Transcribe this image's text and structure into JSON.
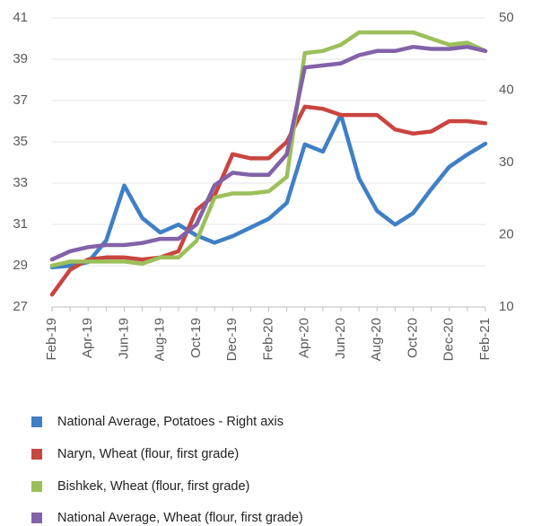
{
  "chart_data": {
    "type": "line",
    "categories": [
      "Feb-19",
      null,
      "Apr-19",
      null,
      "Jun-19",
      null,
      "Aug-19",
      null,
      "Oct-19",
      null,
      "Dec-19",
      null,
      "Feb-20",
      null,
      "Apr-20",
      null,
      "Jun-20",
      null,
      "Aug-20",
      null,
      "Oct-20",
      null,
      "Dec-20",
      null,
      "Feb-21"
    ],
    "series": [
      {
        "name": "National Average, Potatoes - Right axis",
        "color": "#3f7fc6",
        "axis": "y2",
        "values": [
          15.5,
          15.7,
          16.2,
          19.2,
          26.8,
          22.3,
          20.3,
          21.4,
          19.9,
          18.9,
          19.8,
          21,
          22.2,
          24.4,
          32.5,
          31.5,
          36.6,
          27.8,
          23.3,
          21.4,
          23,
          26.3,
          29.4,
          31.1,
          32.6
        ]
      },
      {
        "name": "Naryn, Wheat (flour, first grade)",
        "color": "#c9453f",
        "values": [
          27.6,
          28.8,
          29.3,
          29.4,
          29.4,
          29.3,
          29.4,
          29.7,
          31.7,
          32.4,
          34.4,
          34.2,
          34.2,
          35,
          36.7,
          36.6,
          36.3,
          36.3,
          36.3,
          35.6,
          35.4,
          35.5,
          36,
          36,
          35.9
        ]
      },
      {
        "name": "Bishkek, Wheat (flour, first grade)",
        "color": "#9bc05a",
        "values": [
          29,
          29.2,
          29.2,
          29.2,
          29.2,
          29.1,
          29.4,
          29.4,
          30.2,
          32.3,
          32.5,
          32.5,
          32.6,
          33.3,
          39.3,
          39.4,
          39.7,
          40.3,
          40.3,
          40.3,
          40.3,
          40,
          39.7,
          39.8,
          39.4
        ]
      },
      {
        "name": "National Average, Wheat (flour, first grade)",
        "color": "#8262a8",
        "values": [
          29.3,
          29.7,
          29.9,
          30,
          30,
          30.1,
          30.3,
          30.3,
          31,
          32.9,
          33.5,
          33.4,
          33.4,
          34.4,
          38.6,
          38.7,
          38.8,
          39.2,
          39.4,
          39.4,
          39.6,
          39.5,
          39.5,
          39.6,
          39.4
        ]
      }
    ],
    "ylim": [
      27,
      41
    ],
    "yticks": [
      27,
      29,
      31,
      33,
      35,
      37,
      39,
      41
    ],
    "y2lim": [
      10,
      50
    ],
    "y2ticks": [
      10,
      20,
      30,
      40,
      50
    ],
    "grid": true,
    "legend": "bottom"
  }
}
